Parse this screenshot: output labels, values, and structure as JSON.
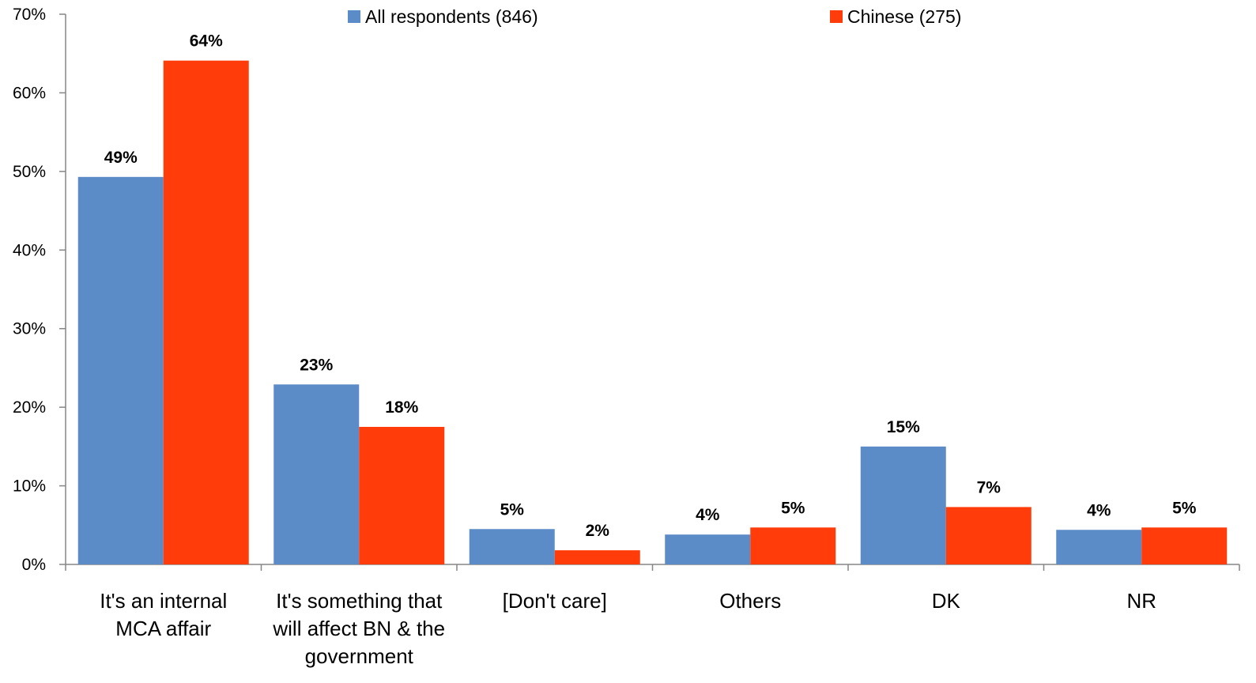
{
  "chart_data": {
    "type": "bar",
    "title": "",
    "xlabel": "",
    "ylabel": "",
    "ylim": [
      0,
      70
    ],
    "ytick_step": 10,
    "ytick_suffix": "%",
    "grid": false,
    "legend_position": "top",
    "categories": [
      [
        "It's an internal",
        "MCA affair"
      ],
      [
        "It's something that",
        "will affect BN & the",
        "government"
      ],
      [
        "[Don't care]"
      ],
      [
        "Others"
      ],
      [
        "DK"
      ],
      [
        "NR"
      ]
    ],
    "series": [
      {
        "name": "All respondents (846)",
        "color": "#5b8cc8",
        "values": [
          49.3,
          22.9,
          4.5,
          3.8,
          15.0,
          4.4
        ],
        "labels": [
          "49%",
          "23%",
          "5%",
          "4%",
          "15%",
          "4%"
        ]
      },
      {
        "name": "Chinese (275)",
        "color": "#ff3c0a",
        "values": [
          64.1,
          17.5,
          1.8,
          4.7,
          7.3,
          4.7
        ],
        "labels": [
          "64%",
          "18%",
          "2%",
          "5%",
          "7%",
          "5%"
        ]
      }
    ]
  }
}
